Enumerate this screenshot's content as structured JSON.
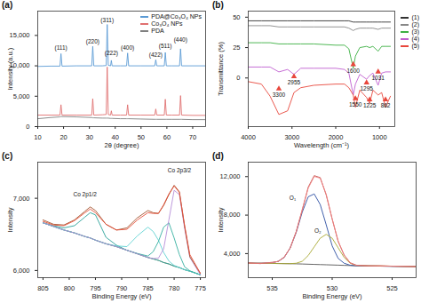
{
  "chart_data": [
    {
      "type": "line",
      "title": "(a)",
      "x_label": "2θ (degree)",
      "y_label": "Intensity (a.u.)",
      "x": [
        10,
        15,
        18.6,
        19,
        19.4,
        25,
        30.9,
        31.3,
        31.7,
        35,
        36.5,
        36.9,
        37.3,
        38.2,
        38.5,
        38.8,
        42,
        44.4,
        44.8,
        45.2,
        50,
        55.3,
        55.7,
        56.1,
        59,
        59.4,
        59.8,
        62,
        64.9,
        65.3,
        65.7,
        70,
        75
      ],
      "series": [
        {
          "name": "PDA@Co₃O₄ NPs",
          "color": "#5b9bd5",
          "values": [
            9900,
            9950,
            9950,
            12000,
            9950,
            10000,
            10000,
            13200,
            10000,
            10000,
            10050,
            16800,
            10100,
            10000,
            10900,
            10000,
            10000,
            10000,
            12100,
            10000,
            10000,
            10000,
            11000,
            10000,
            10000,
            12200,
            10000,
            10000,
            10000,
            12800,
            10000,
            10000,
            10000
          ]
        },
        {
          "name": "Co₃O₄ NPs",
          "color": "#e07070",
          "values": [
            1900,
            1900,
            1900,
            3600,
            1900,
            1900,
            1900,
            4600,
            1900,
            1950,
            2000,
            9800,
            2000,
            1900,
            2600,
            1900,
            1900,
            1900,
            3600,
            1900,
            1900,
            1900,
            2900,
            1900,
            1900,
            4500,
            1900,
            1900,
            1900,
            5100,
            1900,
            1850,
            1850
          ]
        },
        {
          "name": "PDA",
          "color": "#808080",
          "values": [
            1300,
            1500,
            1600,
            1650,
            1650,
            1600,
            1500,
            1450,
            1450,
            1400,
            1400,
            1400,
            1400,
            1350,
            1350,
            1350,
            1300,
            1300,
            1300,
            1300,
            1250,
            1200,
            1200,
            1200,
            1200,
            1200,
            1200,
            1200,
            1200,
            1200,
            1200,
            1150,
            1150
          ]
        }
      ],
      "xlim": [
        10,
        75
      ],
      "xticks": [
        10,
        20,
        30,
        40,
        50,
        60,
        70
      ],
      "ylim": [
        0,
        19000
      ],
      "yticks": [
        0,
        {
          "value": 5000,
          "label": "5,000"
        },
        {
          "value": 10000,
          "label": "10,000"
        },
        {
          "value": 15000,
          "label": "15,000"
        }
      ],
      "legend": "top-right",
      "annotations": [
        {
          "text": "(111)",
          "x": 19,
          "y": 13000
        },
        {
          "text": "(220)",
          "x": 31.3,
          "y": 14000
        },
        {
          "text": "(311)",
          "x": 36.9,
          "y": 17500
        },
        {
          "text": "(222)",
          "x": 38.5,
          "y": 12000
        },
        {
          "text": "(400)",
          "x": 44.8,
          "y": 13000
        },
        {
          "text": "(422)",
          "x": 55.7,
          "y": 11800
        },
        {
          "text": "(511)",
          "x": 59.4,
          "y": 13300
        },
        {
          "text": "(440)",
          "x": 65.3,
          "y": 14300
        }
      ]
    },
    {
      "type": "line",
      "title": "(b)",
      "x_label": "Wavelength (cm⁻¹)",
      "y_label": "Transmittance (%)",
      "x": [
        4000,
        3700,
        3500,
        3300,
        3100,
        2955,
        2800,
        2500,
        2000,
        1800,
        1700,
        1600,
        1550,
        1450,
        1295,
        1225,
        1150,
        1031,
        950,
        862,
        750
      ],
      "series": [
        {
          "name": "(1)",
          "color": "#333333",
          "values": [
            47,
            47,
            47,
            47,
            47,
            47,
            47,
            47,
            47,
            47,
            47,
            46,
            46,
            46,
            46,
            46,
            46,
            46,
            46,
            46,
            46
          ]
        },
        {
          "name": "(2)",
          "color": "#888888",
          "values": [
            43,
            43,
            43,
            42,
            42,
            42,
            42,
            42,
            42,
            42,
            41,
            39,
            40,
            41,
            41,
            41,
            41,
            40,
            41,
            41,
            41
          ]
        },
        {
          "name": "(3)",
          "color": "#3cb043",
          "values": [
            29,
            29,
            29,
            28,
            28,
            28,
            28,
            28,
            27,
            27,
            24,
            8,
            18,
            25,
            26,
            25,
            26,
            22,
            26,
            26,
            26
          ]
        },
        {
          "name": "(4)",
          "color": "#c060d0",
          "values": [
            9,
            9,
            9,
            5,
            7,
            3,
            8,
            8,
            8,
            7,
            4,
            -14,
            -5,
            3,
            -1,
            2,
            4,
            -6,
            4,
            5,
            5
          ]
        },
        {
          "name": "(5)",
          "color": "#e8473c",
          "values": [
            -3,
            -5,
            -15,
            -30,
            -27,
            -12,
            -8,
            -6,
            -5,
            -5,
            -8,
            -14,
            -24,
            -10,
            -16,
            -21,
            -10,
            -14,
            -12,
            -24,
            -15
          ]
        }
      ],
      "xlim": [
        4000,
        650
      ],
      "xticks": [
        4000,
        3000,
        2000,
        1000
      ],
      "ylim": [
        -40,
        55
      ],
      "yticks": [
        0,
        25,
        50
      ],
      "legend": "right",
      "annotations": [
        {
          "text": "3300",
          "x": 3300,
          "y": -14,
          "color": "#e8473c"
        },
        {
          "text": "2955",
          "x": 2955,
          "y": -4,
          "color": "#e8473c"
        },
        {
          "text": "1600",
          "x": 1600,
          "y": 6,
          "color": "#e8473c"
        },
        {
          "text": "1550",
          "x": 1550,
          "y": -22,
          "color": "#e8473c"
        },
        {
          "text": "1295",
          "x": 1295,
          "y": -9,
          "color": "#e8473c"
        },
        {
          "text": "1225",
          "x": 1225,
          "y": -23,
          "color": "#e8473c"
        },
        {
          "text": "1031",
          "x": 1031,
          "y": 0,
          "color": "#e8473c"
        },
        {
          "text": "862",
          "x": 862,
          "y": -23,
          "color": "#e8473c"
        }
      ]
    },
    {
      "type": "line",
      "title": "(c)",
      "x_label": "Binding Energy (eV)",
      "y_label": "Intensity",
      "x": [
        805,
        803,
        801,
        799,
        797,
        796,
        795,
        793,
        791,
        789,
        787,
        785,
        784,
        783,
        782,
        781,
        780,
        779,
        778,
        777,
        775
      ],
      "series": [
        {
          "color": "#7f7f5f",
          "values": [
            6660,
            6610,
            6560,
            6520,
            6470,
            6450,
            6420,
            6370,
            6330,
            6280,
            6230,
            6180,
            6160,
            6140,
            6110,
            6090,
            6060,
            6040,
            6010,
            5990,
            5940
          ]
        },
        {
          "color": "#2aa198",
          "values": [
            6660,
            6620,
            6590,
            6620,
            6740,
            6800,
            6770,
            6460,
            6350,
            6280,
            6230,
            6180,
            6160,
            6140,
            6110,
            6090,
            6060,
            6040,
            6010,
            5990,
            5940
          ]
        },
        {
          "color": "#5fd3d3",
          "values": [
            6660,
            6610,
            6560,
            6520,
            6470,
            6450,
            6420,
            6370,
            6340,
            6330,
            6480,
            6600,
            6540,
            6420,
            6250,
            6130,
            6070,
            6040,
            6010,
            5990,
            5940
          ]
        },
        {
          "color": "#36b0a0",
          "values": [
            6660,
            6610,
            6560,
            6520,
            6470,
            6450,
            6420,
            6370,
            6330,
            6280,
            6235,
            6200,
            6260,
            6400,
            6600,
            6660,
            6450,
            6220,
            6050,
            5995,
            5940
          ]
        },
        {
          "color": "#b68fd8",
          "values": [
            6660,
            6610,
            6560,
            6520,
            6470,
            6450,
            6420,
            6370,
            6330,
            6280,
            6230,
            6180,
            6165,
            6170,
            6300,
            6700,
            7110,
            7050,
            6580,
            6180,
            5940
          ]
        },
        {
          "color": "#a0522d",
          "values": [
            6700,
            6640,
            6630,
            6700,
            6820,
            6880,
            6830,
            6640,
            6560,
            6590,
            6730,
            6830,
            6800,
            6790,
            6900,
            7050,
            7180,
            7090,
            6610,
            6190,
            5960
          ]
        },
        {
          "color": "#e8503a",
          "values": [
            6680,
            6630,
            6620,
            6690,
            6800,
            6850,
            6800,
            6640,
            6560,
            6570,
            6700,
            6800,
            6790,
            6790,
            6910,
            7060,
            7170,
            7080,
            6620,
            6220,
            5960
          ]
        }
      ],
      "xlim": [
        806,
        774
      ],
      "xticks": [
        805,
        800,
        795,
        790,
        785,
        780,
        775
      ],
      "ylim": [
        5900,
        7500
      ],
      "yticks": [
        {
          "value": 6000,
          "label": "6,000"
        },
        {
          "value": 7000,
          "label": "7,000"
        }
      ],
      "annotations": [
        {
          "text": "Co 2p1/2",
          "x": 797,
          "y": 7050
        },
        {
          "text": "Co 2p3/2",
          "x": 779,
          "y": 7380
        }
      ]
    },
    {
      "type": "line",
      "title": "(d)",
      "x_label": "Binding Energy (eV)",
      "y_label": "Intensity",
      "x": [
        537,
        536,
        535,
        534.5,
        534,
        533.5,
        533,
        532.5,
        532,
        531.5,
        531,
        530.5,
        530,
        529.5,
        529,
        528.5,
        528,
        527,
        526,
        525,
        523
      ],
      "series": [
        {
          "color": "#555555",
          "values": [
            3000,
            3000,
            2980,
            2970,
            2960,
            2950,
            2940,
            2920,
            2900,
            2880,
            2860,
            2840,
            2820,
            2800,
            2780,
            2760,
            2740,
            2720,
            2700,
            2680,
            2660
          ]
        },
        {
          "color": "#2b4ea2",
          "values": [
            3000,
            3000,
            3050,
            3200,
            3600,
            4600,
            6200,
            8300,
            9900,
            10200,
            9100,
            7000,
            4800,
            3500,
            3000,
            2790,
            2740,
            2720,
            2700,
            2680,
            2660
          ]
        },
        {
          "color": "#a8a832",
          "values": [
            3000,
            3000,
            2980,
            2970,
            2960,
            2960,
            3000,
            3200,
            3800,
            4700,
            5600,
            6000,
            5600,
            4600,
            3600,
            3000,
            2780,
            2740,
            2720,
            2700,
            2660
          ]
        },
        {
          "color": "#c0504d",
          "values": [
            3050,
            2960,
            3100,
            3180,
            3650,
            4580,
            6300,
            8500,
            10900,
            12100,
            11900,
            10100,
            7600,
            5250,
            3850,
            3050,
            2800,
            2720,
            2740,
            2690,
            2650
          ]
        },
        {
          "color": "#f08080",
          "values": [
            3000,
            3000,
            3050,
            3200,
            3600,
            4610,
            6260,
            8580,
            10800,
            12020,
            11840,
            10160,
            7580,
            5300,
            3820,
            3030,
            2780,
            2740,
            2720,
            2700,
            2660
          ]
        }
      ],
      "xlim": [
        537,
        523
      ],
      "xticks": [
        535,
        530,
        525
      ],
      "ylim": [
        1500,
        13500
      ],
      "yticks": [
        {
          "value": 4000,
          "label": "4,000"
        },
        {
          "value": 8000,
          "label": "8,000"
        },
        {
          "value": 12000,
          "label": "12,000"
        }
      ],
      "annotations": [
        {
          "text": "O₁",
          "x": 533.3,
          "y": 9800
        },
        {
          "text": "O₂",
          "x": 531.2,
          "y": 6400
        }
      ]
    }
  ]
}
